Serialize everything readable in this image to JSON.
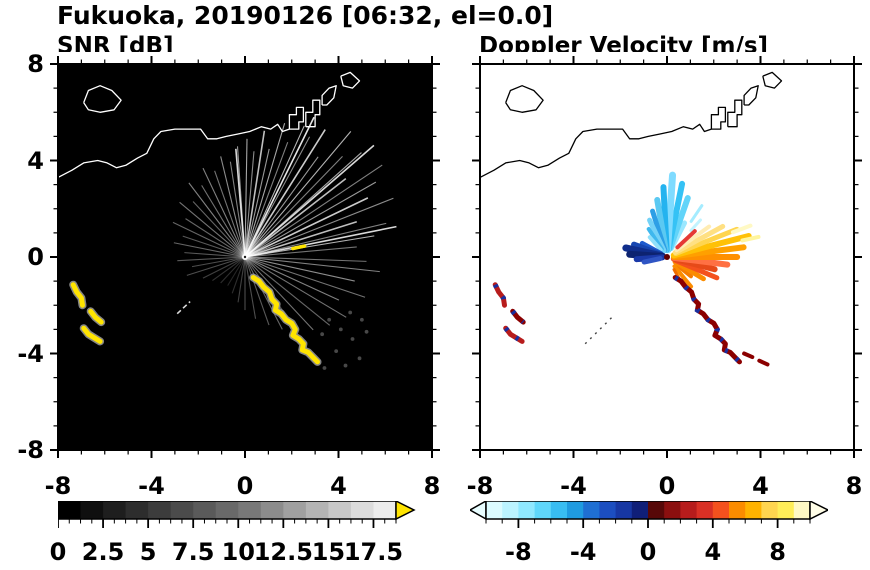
{
  "title": "Fukuoka, 20190126 [06:32, el=0.0]",
  "axes": {
    "xticks": [
      -8,
      -4,
      0,
      4,
      8
    ],
    "yticks": [
      8,
      4,
      0,
      -4,
      -8
    ],
    "range": [
      -8,
      8
    ],
    "frame_color": "#000000"
  },
  "coastline": [
    [
      [
        -6.9,
        6.4
      ],
      [
        -6.7,
        6.9
      ],
      [
        -6.2,
        7.1
      ],
      [
        -5.7,
        6.9
      ],
      [
        -5.3,
        6.5
      ],
      [
        -5.6,
        6.1
      ],
      [
        -6.2,
        6.0
      ],
      [
        -6.7,
        6.1
      ],
      [
        -6.9,
        6.4
      ]
    ],
    [
      [
        -8,
        3.3
      ],
      [
        -7.4,
        3.6
      ],
      [
        -6.9,
        3.9
      ],
      [
        -6.3,
        4.0
      ],
      [
        -5.9,
        3.9
      ],
      [
        -5.5,
        3.7
      ],
      [
        -5.1,
        3.8
      ],
      [
        -4.6,
        4.1
      ],
      [
        -4.2,
        4.3
      ],
      [
        -3.9,
        4.9
      ],
      [
        -3.6,
        5.2
      ],
      [
        -3.0,
        5.3
      ],
      [
        -2.4,
        5.3
      ],
      [
        -1.9,
        5.3
      ],
      [
        -1.6,
        4.9
      ],
      [
        -1.2,
        4.9
      ],
      [
        -0.8,
        5.0
      ],
      [
        -0.3,
        5.1
      ],
      [
        0.2,
        5.2
      ],
      [
        0.7,
        5.4
      ],
      [
        1.1,
        5.3
      ],
      [
        1.4,
        5.5
      ],
      [
        1.6,
        5.2
      ],
      [
        1.9,
        5.3
      ]
    ],
    [
      [
        1.9,
        5.3
      ],
      [
        1.9,
        5.9
      ],
      [
        2.2,
        5.9
      ],
      [
        2.2,
        6.2
      ],
      [
        2.5,
        6.2
      ],
      [
        2.5,
        5.6
      ],
      [
        2.3,
        5.6
      ],
      [
        2.3,
        5.3
      ],
      [
        1.9,
        5.3
      ]
    ],
    [
      [
        2.6,
        5.4
      ],
      [
        2.6,
        6.0
      ],
      [
        2.9,
        6.0
      ],
      [
        2.9,
        6.5
      ],
      [
        3.2,
        6.5
      ],
      [
        3.2,
        5.9
      ],
      [
        3.0,
        5.9
      ],
      [
        3.0,
        5.4
      ],
      [
        2.6,
        5.4
      ]
    ],
    [
      [
        3.3,
        6.3
      ],
      [
        3.3,
        6.7
      ],
      [
        3.6,
        7.0
      ],
      [
        3.9,
        7.1
      ],
      [
        3.8,
        6.6
      ],
      [
        3.5,
        6.3
      ],
      [
        3.3,
        6.3
      ]
    ],
    [
      [
        4.1,
        7.5
      ],
      [
        4.5,
        7.65
      ],
      [
        4.9,
        7.3
      ],
      [
        4.6,
        7.0
      ],
      [
        4.2,
        7.1
      ],
      [
        4.1,
        7.5
      ]
    ]
  ],
  "chart_data": [
    {
      "type": "heatmap",
      "title": "SNR [dB]",
      "xlim": [
        -8,
        8
      ],
      "ylim": [
        -8,
        8
      ],
      "background": "#000000",
      "coast_color": "#ffffff",
      "beam_color": "#ffffff",
      "radar_center": [
        0,
        0
      ],
      "colorbar": {
        "min": 0,
        "max": 18.75,
        "minor_step": 0.625,
        "tick_values": [
          0,
          2.5,
          5,
          7.5,
          10,
          12.5,
          15,
          17.5
        ],
        "tick_labels": [
          "0",
          "2.5",
          "5",
          "7.5",
          "10",
          "12.5",
          "15",
          "17.5"
        ],
        "colors": [
          "#000000",
          "#0f0f0f",
          "#1e1e1e",
          "#2d2d2d",
          "#3c3c3c",
          "#4b4b4b",
          "#5a5a5a",
          "#696969",
          "#787878",
          "#8c8c8c",
          "#a0a0a0",
          "#b4b4b4",
          "#c8c8c8",
          "#dcdcdc",
          "#ececec"
        ],
        "over_color": "#FFE400"
      },
      "beams": [
        [
          5,
          4.8,
          0.45
        ],
        [
          9,
          5.6,
          0.7
        ],
        [
          11,
          6.6,
          0.85
        ],
        [
          13,
          6.2,
          0.5
        ],
        [
          17,
          5.0,
          0.75
        ],
        [
          21,
          6.8,
          0.55
        ],
        [
          25,
          5.8,
          0.8
        ],
        [
          29,
          6.4,
          0.6
        ],
        [
          33,
          7.0,
          0.5
        ],
        [
          37,
          5.4,
          0.75
        ],
        [
          40,
          7.2,
          0.85
        ],
        [
          41,
          6.6,
          0.65
        ],
        [
          45,
          5.9,
          0.5
        ],
        [
          49,
          6.9,
          0.7
        ],
        [
          53,
          5.2,
          0.6
        ],
        [
          57,
          6.3,
          0.8
        ],
        [
          61,
          5.7,
          0.55
        ],
        [
          63,
          6.5,
          0.9
        ],
        [
          65,
          6.0,
          0.7
        ],
        [
          69,
          5.1,
          0.5
        ],
        [
          73,
          5.8,
          0.65
        ],
        [
          77,
          4.6,
          0.6
        ],
        [
          81,
          5.3,
          0.75
        ],
        [
          85,
          4.4,
          0.55
        ],
        [
          89,
          4.9,
          0.65
        ],
        [
          94,
          4.6,
          0.6
        ],
        [
          95,
          4.5,
          0.85
        ],
        [
          99,
          4.0,
          0.5
        ],
        [
          104,
          4.3,
          0.55
        ],
        [
          110,
          3.8,
          0.45
        ],
        [
          116,
          4.1,
          0.5
        ],
        [
          122,
          3.5,
          0.45
        ],
        [
          128,
          3.9,
          0.5
        ],
        [
          134,
          3.2,
          0.4
        ],
        [
          141,
          3.6,
          0.45
        ],
        [
          148,
          3.0,
          0.4
        ],
        [
          155,
          3.4,
          0.4
        ],
        [
          162,
          2.8,
          0.35
        ],
        [
          169,
          3.1,
          0.4
        ],
        [
          176,
          2.6,
          0.35
        ],
        [
          183,
          2.9,
          0.35
        ],
        [
          190,
          2.3,
          0.3
        ],
        [
          197,
          2.6,
          0.3
        ],
        [
          206,
          2.0,
          0.25
        ],
        [
          215,
          1.7,
          0.2
        ],
        [
          226,
          1.5,
          0.18
        ],
        [
          238,
          1.4,
          0.15
        ],
        [
          250,
          1.6,
          0.18
        ],
        [
          261,
          1.9,
          0.25
        ],
        [
          270,
          2.2,
          0.3
        ],
        [
          280,
          2.6,
          0.3
        ],
        [
          290,
          3.0,
          0.35
        ],
        [
          298,
          3.4,
          0.4
        ],
        [
          306,
          3.8,
          0.35
        ],
        [
          314,
          4.2,
          0.45
        ],
        [
          322,
          4.6,
          0.4
        ],
        [
          330,
          5.0,
          0.45
        ],
        [
          336,
          4.4,
          0.5
        ],
        [
          342,
          5.4,
          0.45
        ],
        [
          348,
          4.8,
          0.55
        ],
        [
          354,
          5.8,
          0.5
        ],
        [
          358,
          5.2,
          0.45
        ]
      ],
      "speckles": [
        [
          3.6,
          -2.6
        ],
        [
          4.1,
          -3.0
        ],
        [
          4.6,
          -3.4
        ],
        [
          3.9,
          -3.9
        ],
        [
          4.9,
          -4.2
        ],
        [
          4.3,
          -4.5
        ],
        [
          5.2,
          -3.1
        ],
        [
          3.3,
          -3.2
        ],
        [
          5.0,
          -2.6
        ],
        [
          4.5,
          -2.3
        ],
        [
          2.9,
          -4.2
        ],
        [
          3.4,
          -4.6
        ]
      ],
      "clutter_arcs": [
        {
          "points": [
            [
              0.35,
              -0.85
            ],
            [
              0.6,
              -1.0
            ],
            [
              0.8,
              -1.25
            ],
            [
              1.05,
              -1.45
            ],
            [
              1.15,
              -1.75
            ],
            [
              1.35,
              -1.95
            ],
            [
              1.3,
              -2.2
            ],
            [
              1.55,
              -2.35
            ],
            [
              1.75,
              -2.6
            ],
            [
              2.0,
              -2.75
            ],
            [
              2.15,
              -3.0
            ],
            [
              2.05,
              -3.25
            ],
            [
              2.3,
              -3.4
            ],
            [
              2.5,
              -3.6
            ],
            [
              2.45,
              -3.85
            ],
            [
              2.7,
              -3.95
            ],
            [
              2.9,
              -4.15
            ],
            [
              3.1,
              -4.35
            ]
          ],
          "color": "#FFE400",
          "casing": "#9E9E9E",
          "width": 5
        },
        {
          "points": [
            [
              -7.35,
              -1.15
            ],
            [
              -7.2,
              -1.45
            ],
            [
              -7.0,
              -1.7
            ],
            [
              -6.95,
              -2.0
            ]
          ],
          "color": "#FFE400",
          "casing": "#9E9E9E",
          "width": 5
        },
        {
          "points": [
            [
              -6.6,
              -2.25
            ],
            [
              -6.4,
              -2.5
            ],
            [
              -6.15,
              -2.7
            ]
          ],
          "color": "#FFE400",
          "casing": "#9E9E9E",
          "width": 5
        },
        {
          "points": [
            [
              -6.9,
              -2.95
            ],
            [
              -6.7,
              -3.2
            ],
            [
              -6.45,
              -3.35
            ],
            [
              -6.2,
              -3.5
            ]
          ],
          "color": "#FFE400",
          "casing": "#9E9E9E",
          "width": 5
        },
        {
          "points": [
            [
              2.05,
              0.35
            ],
            [
              2.55,
              0.45
            ]
          ],
          "color": "#FFE400",
          "width": 3.5
        }
      ],
      "streaks": [
        {
          "points": [
            [
              -2.9,
              -2.35
            ],
            [
              -2.35,
              -1.85
            ]
          ],
          "color": "#DADADA",
          "width": 1.6,
          "dash": "5 3"
        }
      ],
      "center_outer": "#ffffff",
      "center_inner": "#1a1a1a"
    },
    {
      "type": "heatmap",
      "title": "Doppler Velocity [m/s]",
      "xlim": [
        -8,
        8
      ],
      "ylim": [
        -8,
        8
      ],
      "background": "#ffffff",
      "coast_color": "#000000",
      "radar_center": [
        0,
        0
      ],
      "colorbar": {
        "min": -10,
        "max": 10,
        "minor_step": 1,
        "tick_values": [
          -8,
          -4,
          0,
          4,
          8
        ],
        "tick_labels": [
          "-8",
          "-4",
          "0",
          "4",
          "8"
        ],
        "colors": [
          "#DCFBFF",
          "#BBF3FF",
          "#8FE8FF",
          "#5FD7FB",
          "#38BDF2",
          "#1F9BE0",
          "#1F6FD2",
          "#1C4EC0",
          "#1737A3",
          "#101F78",
          "#570808",
          "#8B0F0F",
          "#B71C1C",
          "#D93025",
          "#F4511E",
          "#FB8C00",
          "#FFB300",
          "#FFD54F",
          "#FFEE58",
          "#FFF9C4"
        ],
        "under_color": "#E8FDFF",
        "over_color": "#FFFDE7"
      },
      "wedges": [
        [
          62,
          0.4,
          1.6,
          "#9BE7FF",
          5
        ],
        [
          70,
          0.4,
          2.6,
          "#62D4F9",
          6
        ],
        [
          78,
          0.3,
          3.1,
          "#35C2F5",
          6
        ],
        [
          86,
          0.3,
          3.4,
          "#7FDBFF",
          7
        ],
        [
          93,
          0.3,
          2.9,
          "#24B3EF",
          6
        ],
        [
          100,
          0.3,
          2.4,
          "#5BC9F2",
          6
        ],
        [
          108,
          0.3,
          2.0,
          "#2D9FE6",
          5
        ],
        [
          116,
          0.3,
          1.7,
          "#74D2F7",
          5
        ],
        [
          124,
          0.4,
          1.4,
          "#3FB8EE",
          4
        ],
        [
          132,
          0.4,
          1.1,
          "#8FE0FB",
          4
        ],
        [
          55,
          1.8,
          2.6,
          "#A5ECFF",
          3
        ],
        [
          47,
          1.5,
          2.1,
          "#C2F3FF",
          3
        ],
        [
          152,
          0.3,
          1.2,
          "#1E5ACD",
          5
        ],
        [
          160,
          0.3,
          1.5,
          "#1746B0",
          6
        ],
        [
          168,
          0.2,
          1.8,
          "#102E8C",
          7
        ],
        [
          176,
          0.2,
          1.6,
          "#0D2370",
          7
        ],
        [
          184,
          0.2,
          1.3,
          "#1A39A8",
          6
        ],
        [
          192,
          0.3,
          1.0,
          "#2F55C4",
          5
        ],
        [
          -38,
          0.5,
          1.3,
          "#F57C00",
          4
        ],
        [
          -30,
          0.4,
          1.8,
          "#FB8C00",
          5
        ],
        [
          -22,
          0.4,
          2.3,
          "#F4511E",
          5
        ],
        [
          -14,
          0.3,
          2.1,
          "#E64A19",
          6
        ],
        [
          -7,
          0.3,
          2.6,
          "#FF7043",
          6
        ],
        [
          0,
          0.3,
          3.0,
          "#FF8F00",
          6
        ],
        [
          7,
          0.3,
          3.3,
          "#FFA000",
          6
        ],
        [
          14,
          0.3,
          3.6,
          "#FFC107",
          6
        ],
        [
          21,
          0.4,
          3.2,
          "#FFD54F",
          5
        ],
        [
          28,
          0.4,
          2.7,
          "#FFE082",
          5
        ],
        [
          35,
          0.5,
          2.2,
          "#FFECB3",
          4
        ],
        [
          42,
          0.6,
          1.6,
          "#E53935",
          4
        ],
        [
          -50,
          0.5,
          1.6,
          "#FB8C00",
          4
        ],
        [
          -60,
          0.6,
          1.2,
          "#EF6C00",
          3
        ],
        [
          12,
          3.3,
          4.0,
          "#FFF59D",
          4
        ],
        [
          20,
          3.0,
          3.8,
          "#FFF9C4",
          4
        ]
      ],
      "clutter_arcs": [
        {
          "points": [
            [
              0.35,
              -0.85
            ],
            [
              0.6,
              -1.0
            ],
            [
              0.8,
              -1.25
            ],
            [
              1.05,
              -1.45
            ],
            [
              1.15,
              -1.75
            ],
            [
              1.35,
              -1.95
            ],
            [
              1.3,
              -2.2
            ],
            [
              1.55,
              -2.35
            ],
            [
              1.75,
              -2.6
            ],
            [
              2.0,
              -2.75
            ],
            [
              2.15,
              -3.0
            ],
            [
              2.05,
              -3.25
            ],
            [
              2.3,
              -3.4
            ],
            [
              2.5,
              -3.6
            ],
            [
              2.45,
              -3.85
            ],
            [
              2.7,
              -3.95
            ],
            [
              2.9,
              -4.15
            ],
            [
              3.1,
              -4.35
            ]
          ],
          "color": "#8B0000",
          "fleck": "#1A2F9E",
          "width": 5
        },
        {
          "points": [
            [
              -7.35,
              -1.15
            ],
            [
              -7.2,
              -1.45
            ],
            [
              -7.0,
              -1.7
            ],
            [
              -6.95,
              -2.0
            ]
          ],
          "color": "#B71C1C",
          "fleck": "#1A2F9E",
          "width": 5
        },
        {
          "points": [
            [
              -6.6,
              -2.25
            ],
            [
              -6.4,
              -2.5
            ],
            [
              -6.15,
              -2.7
            ]
          ],
          "color": "#8B0000",
          "fleck": "#1A2F9E",
          "width": 5
        },
        {
          "points": [
            [
              -6.9,
              -2.95
            ],
            [
              -6.7,
              -3.2
            ],
            [
              -6.45,
              -3.35
            ],
            [
              -6.2,
              -3.5
            ]
          ],
          "color": "#B71C1C",
          "fleck": "#1A2F9E",
          "width": 5
        },
        {
          "points": [
            [
              3.3,
              -4.0
            ],
            [
              3.65,
              -4.15
            ]
          ],
          "color": "#8B0000",
          "width": 4
        },
        {
          "points": [
            [
              3.95,
              -4.3
            ],
            [
              4.3,
              -4.45
            ]
          ],
          "color": "#8B0000",
          "width": 4
        }
      ],
      "streaks": [
        {
          "points": [
            [
              -3.5,
              -3.6
            ],
            [
              -2.3,
              -2.45
            ]
          ],
          "color": "#444444",
          "width": 1.4,
          "dash": "2 5"
        }
      ],
      "center_outer": "#600000",
      "center_inner": "#600000"
    }
  ]
}
